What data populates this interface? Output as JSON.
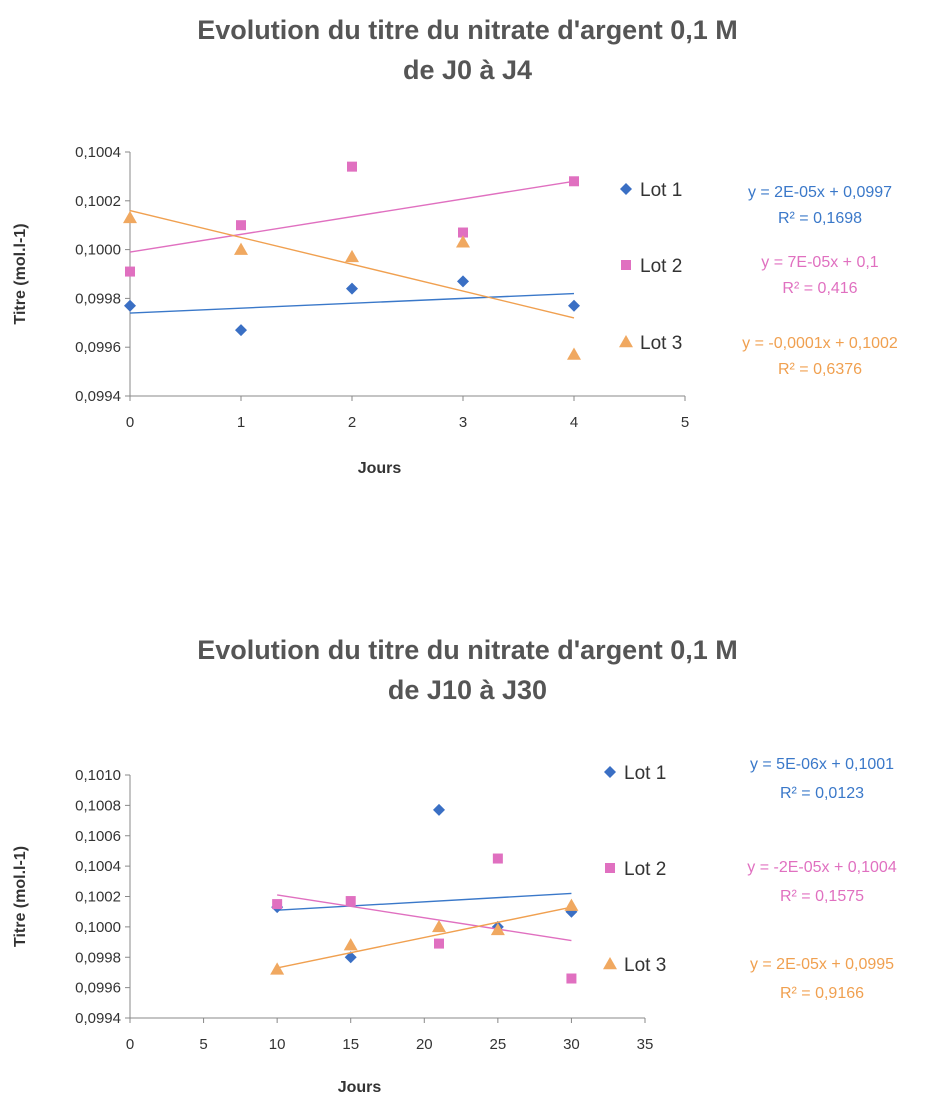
{
  "chart_data": [
    {
      "type": "scatter",
      "title_line1": "Evolution du titre du nitrate d'argent 0,1 M",
      "title_line2": "de J0 à J4",
      "xlabel": "Jours",
      "ylabel": "Titre (mol.l-1)",
      "xlim": [
        0,
        5
      ],
      "ylim": [
        0.0994,
        0.1004
      ],
      "x_ticks": [
        "0",
        "1",
        "2",
        "3",
        "4",
        "5"
      ],
      "y_ticks": [
        "0,0994",
        "0,0996",
        "0,0998",
        "0,1000",
        "0,1002",
        "0,1004"
      ],
      "grid": false,
      "legend_position": "right",
      "series": [
        {
          "name": "Lot 1",
          "marker": "diamond",
          "color": "#3a6fc4",
          "x": [
            0,
            1,
            2,
            3,
            4
          ],
          "y": [
            0.09977,
            0.09967,
            0.09984,
            0.09987,
            0.09977
          ],
          "trendline": {
            "x": [
              0,
              4
            ],
            "y": [
              0.09974,
              0.09982
            ]
          },
          "equation": "y = 2E-05x + 0,0997",
          "r2": "R² = 0,1698",
          "eq_color": "#3a78c9"
        },
        {
          "name": "Lot 2",
          "marker": "square",
          "color": "#e070c0",
          "x": [
            0,
            1,
            2,
            3,
            4
          ],
          "y": [
            0.09991,
            0.1001,
            0.10034,
            0.10007,
            0.10028
          ],
          "trendline": {
            "x": [
              0,
              4
            ],
            "y": [
              0.09999,
              0.10028
            ]
          },
          "equation": "y = 7E-05x + 0,1",
          "r2": "R² = 0,416",
          "eq_color": "#e070c0"
        },
        {
          "name": "Lot 3",
          "marker": "triangle",
          "color": "#f0a860",
          "x": [
            0,
            1,
            2,
            3,
            4
          ],
          "y": [
            0.10013,
            0.1,
            0.09997,
            0.10003,
            0.09957
          ],
          "trendline": {
            "x": [
              0,
              4
            ],
            "y": [
              0.10016,
              0.09972
            ]
          },
          "equation": "y = -0,0001x + 0,1002",
          "r2": "R² = 0,6376",
          "eq_color": "#f0a050"
        }
      ]
    },
    {
      "type": "scatter",
      "title_line1": "Evolution du titre du nitrate d'argent 0,1 M",
      "title_line2": "de J10 à J30",
      "xlabel": "Jours",
      "ylabel": "Titre (mol.l-1)",
      "xlim": [
        0,
        35
      ],
      "ylim": [
        0.0994,
        0.101
      ],
      "x_ticks": [
        "0",
        "5",
        "10",
        "15",
        "20",
        "25",
        "30",
        "35"
      ],
      "y_ticks": [
        "0,0994",
        "0,0996",
        "0,0998",
        "0,1000",
        "0,1002",
        "0,1004",
        "0,1006",
        "0,1008",
        "0,1010"
      ],
      "grid": false,
      "legend_position": "right",
      "series": [
        {
          "name": "Lot 1",
          "marker": "diamond",
          "color": "#3a6fc4",
          "x": [
            10,
            15,
            21,
            25,
            30
          ],
          "y": [
            0.10013,
            0.0998,
            0.10077,
            0.1,
            0.1001
          ],
          "trendline": {
            "x": [
              10,
              30
            ],
            "y": [
              0.10011,
              0.10022
            ]
          },
          "equation": "y = 5E-06x + 0,1001",
          "r2": "R² = 0,0123",
          "eq_color": "#3a78c9"
        },
        {
          "name": "Lot 2",
          "marker": "square",
          "color": "#e070c0",
          "x": [
            10,
            15,
            21,
            25,
            30
          ],
          "y": [
            0.10015,
            0.10017,
            0.09989,
            0.10045,
            0.09966
          ],
          "trendline": {
            "x": [
              10,
              30
            ],
            "y": [
              0.10021,
              0.09991
            ]
          },
          "equation": "y = -2E-05x + 0,1004",
          "r2": "R² = 0,1575",
          "eq_color": "#e070c0"
        },
        {
          "name": "Lot 3",
          "marker": "triangle",
          "color": "#f0a860",
          "x": [
            10,
            15,
            21,
            25,
            30
          ],
          "y": [
            0.09972,
            0.09988,
            0.1,
            0.09998,
            0.10014
          ],
          "trendline": {
            "x": [
              10,
              30
            ],
            "y": [
              0.09973,
              0.10013
            ]
          },
          "equation": "y = 2E-05x + 0,0995",
          "r2": "R² = 0,9166",
          "eq_color": "#f0a050"
        }
      ]
    }
  ]
}
